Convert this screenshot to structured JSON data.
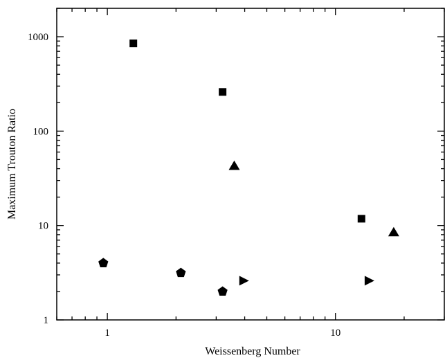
{
  "chart_data": {
    "type": "scatter",
    "title": "",
    "xlabel": "Weissenberg Number",
    "ylabel": "Maximum Trouton Ratio",
    "x_scale": "log",
    "y_scale": "log",
    "xlim": [
      0.6,
      30
    ],
    "ylim": [
      1,
      2000
    ],
    "grid": false,
    "legend": "none",
    "x_ticks": [
      {
        "value": 1,
        "label": "1"
      },
      {
        "value": 10,
        "label": "10"
      }
    ],
    "y_ticks": [
      {
        "value": 1,
        "label": "1"
      },
      {
        "value": 10,
        "label": "10"
      },
      {
        "value": 100,
        "label": "100"
      },
      {
        "value": 1000,
        "label": "1000"
      }
    ],
    "series": [
      {
        "marker": "square",
        "points": [
          [
            1.3,
            850
          ],
          [
            3.2,
            260
          ],
          [
            13,
            11.8
          ]
        ]
      },
      {
        "marker": "triangle-up",
        "points": [
          [
            3.6,
            43
          ],
          [
            18,
            8.5
          ]
        ]
      },
      {
        "marker": "pentagon",
        "points": [
          [
            0.96,
            4.0
          ],
          [
            2.1,
            3.15
          ],
          [
            3.2,
            2.0
          ]
        ]
      },
      {
        "marker": "triangle-right",
        "points": [
          [
            3.95,
            2.6
          ],
          [
            14,
            2.6
          ]
        ]
      }
    ],
    "colors": {
      "marker": "#000000",
      "axis": "#000000"
    }
  }
}
